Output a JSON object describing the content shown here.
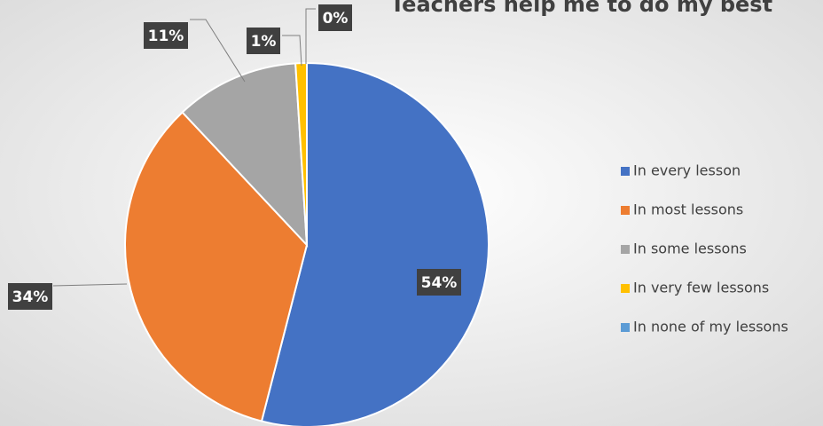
{
  "chart_data": {
    "type": "pie",
    "title": "Teachers help me to do my best",
    "categories": [
      "In every lesson",
      "In most lessons",
      "In some lessons",
      "In very few lessons",
      "In none of my lessons"
    ],
    "values": [
      54,
      34,
      11,
      1,
      0
    ],
    "value_labels": [
      "54%",
      "34%",
      "11%",
      "1%",
      "0%"
    ],
    "colors": [
      "#4472c4",
      "#ed7d31",
      "#a5a5a5",
      "#ffc000",
      "#5b9bd5"
    ],
    "legend": "right"
  }
}
